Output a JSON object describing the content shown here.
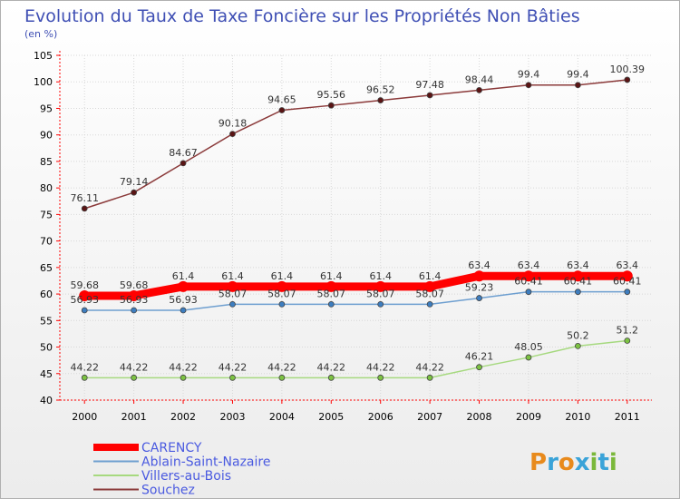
{
  "chart_data": {
    "type": "line",
    "title": "Evolution du Taux de Taxe Foncière sur les Propriétés Non Bâties",
    "subtitle": "(en %)",
    "xlabel": "",
    "ylabel": "",
    "ylim": [
      40,
      105
    ],
    "yticks": [
      40,
      45,
      50,
      55,
      60,
      65,
      70,
      75,
      80,
      85,
      90,
      95,
      100,
      105
    ],
    "x": [
      "2000",
      "2001",
      "2002",
      "2003",
      "2004",
      "2005",
      "2006",
      "2007",
      "2008",
      "2009",
      "2010",
      "2011"
    ],
    "series": [
      {
        "name": "Souchez",
        "color": "#8b3a3a",
        "marker_color": "#5a1414",
        "values": [
          76.11,
          79.14,
          84.67,
          90.18,
          94.65,
          95.56,
          96.52,
          97.48,
          98.44,
          99.4,
          99.4,
          100.39
        ],
        "labels": [
          "76.11",
          "79.14",
          "84.67",
          "90.18",
          "94.65",
          "95.56",
          "96.52",
          "97.48",
          "98.44",
          "99.4",
          "99.4",
          "100.39"
        ]
      },
      {
        "name": "Villers-au-Bois",
        "color": "#a6d97f",
        "marker_color": "#7cc242",
        "values": [
          44.22,
          44.22,
          44.22,
          44.22,
          44.22,
          44.22,
          44.22,
          44.22,
          46.21,
          48.05,
          50.2,
          51.2
        ],
        "labels": [
          "44.22",
          "44.22",
          "44.22",
          "44.22",
          "44.22",
          "44.22",
          "44.22",
          "44.22",
          "46.21",
          "48.05",
          "50.2",
          "51.2"
        ]
      },
      {
        "name": "Ablain-Saint-Nazaire",
        "color": "#6e9fd0",
        "marker_color": "#3d7dbf",
        "values": [
          56.93,
          56.93,
          56.93,
          58.07,
          58.07,
          58.07,
          58.07,
          58.07,
          59.23,
          60.41,
          60.41,
          60.41
        ],
        "labels": [
          "56.93",
          "56.93",
          "56.93",
          "58.07",
          "58.07",
          "58.07",
          "58.07",
          "58.07",
          "59.23",
          "60.41",
          "60.41",
          "60.41"
        ]
      },
      {
        "name": "CARENCY",
        "color": "#ff0000",
        "marker_color": "#ff0000",
        "thick": true,
        "values": [
          59.68,
          59.68,
          61.4,
          61.4,
          61.4,
          61.4,
          61.4,
          61.4,
          63.4,
          63.4,
          63.4,
          63.4
        ],
        "labels": [
          "59.68",
          "59.68",
          "61.4",
          "61.4",
          "61.4",
          "61.4",
          "61.4",
          "61.4",
          "63.4",
          "63.4",
          "63.4",
          "63.4"
        ]
      }
    ],
    "legend": [
      "CARENCY",
      "Ablain-Saint-Nazaire",
      "Villers-au-Bois",
      "Souchez"
    ],
    "legend_position": "bottom-left"
  },
  "logo": {
    "letters": [
      "P",
      "r",
      "o",
      "x",
      "i",
      "t",
      "i"
    ],
    "colors": [
      "#e88a1c",
      "#3aa3d8",
      "#e88a1c",
      "#3aa3d8",
      "#7ab83a",
      "#3aa3d8",
      "#7ab83a"
    ]
  }
}
